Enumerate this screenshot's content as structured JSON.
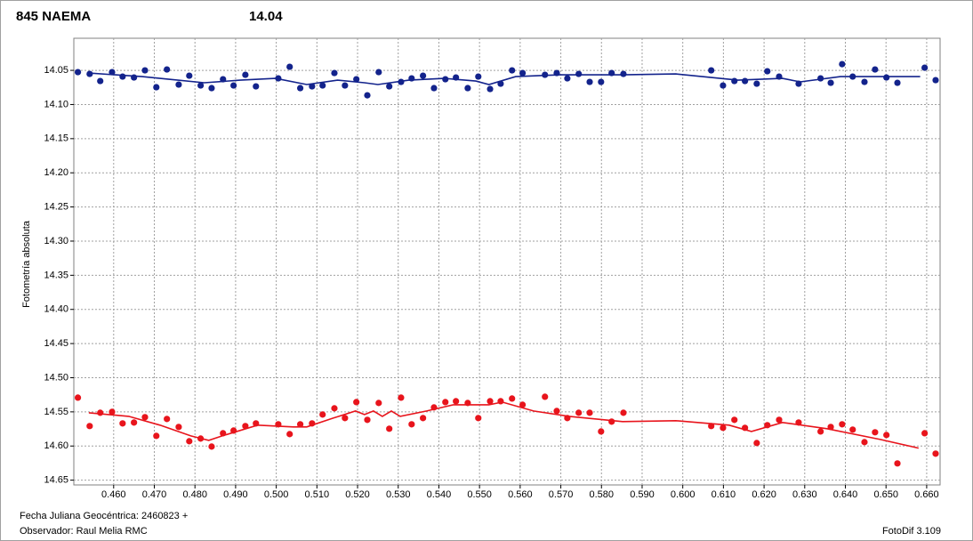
{
  "chart_data": {
    "type": "scatter",
    "title": "845 NAEMA",
    "title_color": "#e8141c",
    "subtitle": "14.04",
    "subtitle_color": "#13238c",
    "y_label": "Fotometría absoluta",
    "x_label": "Fecha Juliana Geocéntrica: 2460823 +",
    "observer": "Observador: Raul Melia RMC",
    "software": "FotoDif 3.109",
    "grid": true,
    "y_inverted": true,
    "xlim": [
      0.4502,
      0.6633
    ],
    "ylim": [
      14.003,
      14.657
    ],
    "xticks": [
      {
        "value": 0.46,
        "label": "0.460"
      },
      {
        "value": 0.47,
        "label": "0.470"
      },
      {
        "value": 0.48,
        "label": "0.480"
      },
      {
        "value": 0.49,
        "label": "0.490"
      },
      {
        "value": 0.5,
        "label": "0.500"
      },
      {
        "value": 0.51,
        "label": "0.510"
      },
      {
        "value": 0.52,
        "label": "0.520"
      },
      {
        "value": 0.53,
        "label": "0.530"
      },
      {
        "value": 0.54,
        "label": "0.540"
      },
      {
        "value": 0.55,
        "label": "0.550"
      },
      {
        "value": 0.56,
        "label": "0.560"
      },
      {
        "value": 0.57,
        "label": "0.570"
      },
      {
        "value": 0.58,
        "label": "0.580"
      },
      {
        "value": 0.59,
        "label": "0.590"
      },
      {
        "value": 0.6,
        "label": "0.600"
      },
      {
        "value": 0.61,
        "label": "0.610"
      },
      {
        "value": 0.62,
        "label": "0.620"
      },
      {
        "value": 0.63,
        "label": "0.630"
      },
      {
        "value": 0.64,
        "label": "0.640"
      },
      {
        "value": 0.65,
        "label": "0.650"
      },
      {
        "value": 0.66,
        "label": "0.660"
      }
    ],
    "yticks": [
      14.05,
      {
        "value": 14.1,
        "label": "14.10"
      },
      14.15,
      {
        "value": 14.2,
        "label": "14.20"
      },
      14.25,
      {
        "value": 14.3,
        "label": "14.30"
      },
      14.35,
      {
        "value": 14.4,
        "label": "14.40"
      },
      14.45,
      {
        "value": 14.5,
        "label": "14.50"
      },
      14.55,
      {
        "value": 14.6,
        "label": "14.60"
      },
      14.65
    ],
    "series": [
      {
        "color": "#13238c",
        "mode": "markers",
        "x": [
          0.4512,
          0.4541,
          0.4567,
          0.4596,
          0.4622,
          0.465,
          0.4677,
          0.4705,
          0.4731,
          0.476,
          0.4786,
          0.4814,
          0.4841,
          0.4869,
          0.4895,
          0.4924,
          0.495,
          0.5005,
          0.5033,
          0.5059,
          0.5088,
          0.5114,
          0.5143,
          0.5169,
          0.5197,
          0.5224,
          0.5252,
          0.5278,
          0.5307,
          0.5333,
          0.5361,
          0.5388,
          0.5416,
          0.5442,
          0.5471,
          0.5497,
          0.5526,
          0.5552,
          0.558,
          0.5606,
          0.5661,
          0.569,
          0.5716,
          0.5744,
          0.5771,
          0.5799,
          0.5825,
          0.5854,
          0.607,
          0.6099,
          0.6127,
          0.6153,
          0.6182,
          0.6208,
          0.6237,
          0.6285,
          0.6339,
          0.6364,
          0.6392,
          0.6418,
          0.6447,
          0.6473,
          0.6501,
          0.6528,
          0.6595,
          0.6622
        ],
        "values": [
          14.0526,
          14.0552,
          14.0656,
          14.0526,
          14.0591,
          14.0604,
          14.05,
          14.0747,
          14.0487,
          14.0708,
          14.0578,
          14.0721,
          14.076,
          14.063,
          14.0721,
          14.0565,
          14.0734,
          14.0617,
          14.0448,
          14.076,
          14.0734,
          14.0721,
          14.0539,
          14.0721,
          14.063,
          14.0865,
          14.0526,
          14.0734,
          14.0669,
          14.0617,
          14.0578,
          14.076,
          14.063,
          14.0604,
          14.076,
          14.0591,
          14.0773,
          14.0695,
          14.05,
          14.0539,
          14.0565,
          14.0539,
          14.0617,
          14.0552,
          14.0669,
          14.0669,
          14.0539,
          14.0552,
          14.05,
          14.0721,
          14.0656,
          14.0656,
          14.0695,
          14.0513,
          14.0591,
          14.0695,
          14.0617,
          14.0682,
          14.0409,
          14.0591,
          14.0669,
          14.0487,
          14.0604,
          14.0682,
          14.0461,
          14.0643
        ]
      },
      {
        "color": "#13238c",
        "mode": "line",
        "x": [
          0.4539,
          0.4604,
          0.467,
          0.4736,
          0.4823,
          0.4911,
          0.4998,
          0.5075,
          0.5151,
          0.5217,
          0.525,
          0.5326,
          0.5414,
          0.5491,
          0.5523,
          0.5589,
          0.5698,
          0.5852,
          0.5983,
          0.607,
          0.6136,
          0.6245,
          0.6289,
          0.6388,
          0.6584
        ],
        "values": [
          14.0539,
          14.0565,
          14.0591,
          14.063,
          14.0682,
          14.0643,
          14.0617,
          14.0708,
          14.0643,
          14.0682,
          14.0708,
          14.0643,
          14.0617,
          14.0656,
          14.0708,
          14.0591,
          14.0565,
          14.0565,
          14.0552,
          14.0604,
          14.0643,
          14.0617,
          14.0669,
          14.0591,
          14.0591
        ]
      },
      {
        "color": "#e8141c",
        "mode": "markers",
        "x": [
          0.4512,
          0.4541,
          0.4567,
          0.4596,
          0.4622,
          0.465,
          0.4677,
          0.4705,
          0.4731,
          0.476,
          0.4786,
          0.4814,
          0.4841,
          0.4869,
          0.4895,
          0.4924,
          0.495,
          0.5005,
          0.5033,
          0.5059,
          0.5088,
          0.5114,
          0.5143,
          0.5169,
          0.5197,
          0.5224,
          0.5252,
          0.5278,
          0.5307,
          0.5333,
          0.5361,
          0.5388,
          0.5416,
          0.5442,
          0.5471,
          0.5497,
          0.5526,
          0.5552,
          0.558,
          0.5606,
          0.5661,
          0.569,
          0.5716,
          0.5744,
          0.5771,
          0.5799,
          0.5825,
          0.5854,
          0.607,
          0.6099,
          0.6127,
          0.6153,
          0.6182,
          0.6208,
          0.6237,
          0.6285,
          0.6339,
          0.6364,
          0.6392,
          0.6418,
          0.6447,
          0.6473,
          0.6501,
          0.6528,
          0.6595,
          0.6622
        ],
        "values": [
          14.5292,
          14.5708,
          14.5513,
          14.55,
          14.5669,
          14.5656,
          14.5578,
          14.5852,
          14.5604,
          14.5721,
          14.593,
          14.5891,
          14.6008,
          14.5813,
          14.5774,
          14.5708,
          14.5669,
          14.5682,
          14.5826,
          14.5682,
          14.5669,
          14.5539,
          14.5448,
          14.5591,
          14.5357,
          14.5617,
          14.537,
          14.5747,
          14.5292,
          14.5682,
          14.5591,
          14.5435,
          14.5357,
          14.5344,
          14.537,
          14.5591,
          14.5344,
          14.5344,
          14.5305,
          14.5396,
          14.5279,
          14.5487,
          14.5591,
          14.5513,
          14.5513,
          14.5787,
          14.5643,
          14.5513,
          14.5708,
          14.5734,
          14.5617,
          14.5734,
          14.5956,
          14.5695,
          14.5617,
          14.5656,
          14.5787,
          14.5721,
          14.5682,
          14.576,
          14.5943,
          14.5799,
          14.5839,
          14.6255,
          14.5813,
          14.6112
        ]
      },
      {
        "color": "#e8141c",
        "mode": "line",
        "x": [
          0.4539,
          0.4637,
          0.4714,
          0.479,
          0.4834,
          0.4867,
          0.4954,
          0.5042,
          0.5075,
          0.514,
          0.5195,
          0.5217,
          0.5239,
          0.5261,
          0.5283,
          0.5305,
          0.537,
          0.5436,
          0.5523,
          0.5556,
          0.5633,
          0.572,
          0.5852,
          0.5983,
          0.6114,
          0.6169,
          0.6245,
          0.6355,
          0.6486,
          0.658
        ],
        "values": [
          14.5513,
          14.5565,
          14.5695,
          14.5852,
          14.5917,
          14.5852,
          14.5695,
          14.5721,
          14.5721,
          14.5591,
          14.5487,
          14.5539,
          14.5487,
          14.5565,
          14.5487,
          14.5565,
          14.5487,
          14.5396,
          14.5396,
          14.5357,
          14.5487,
          14.5565,
          14.5643,
          14.563,
          14.5695,
          14.5787,
          14.5656,
          14.5747,
          14.5904,
          14.6031
        ]
      }
    ]
  }
}
